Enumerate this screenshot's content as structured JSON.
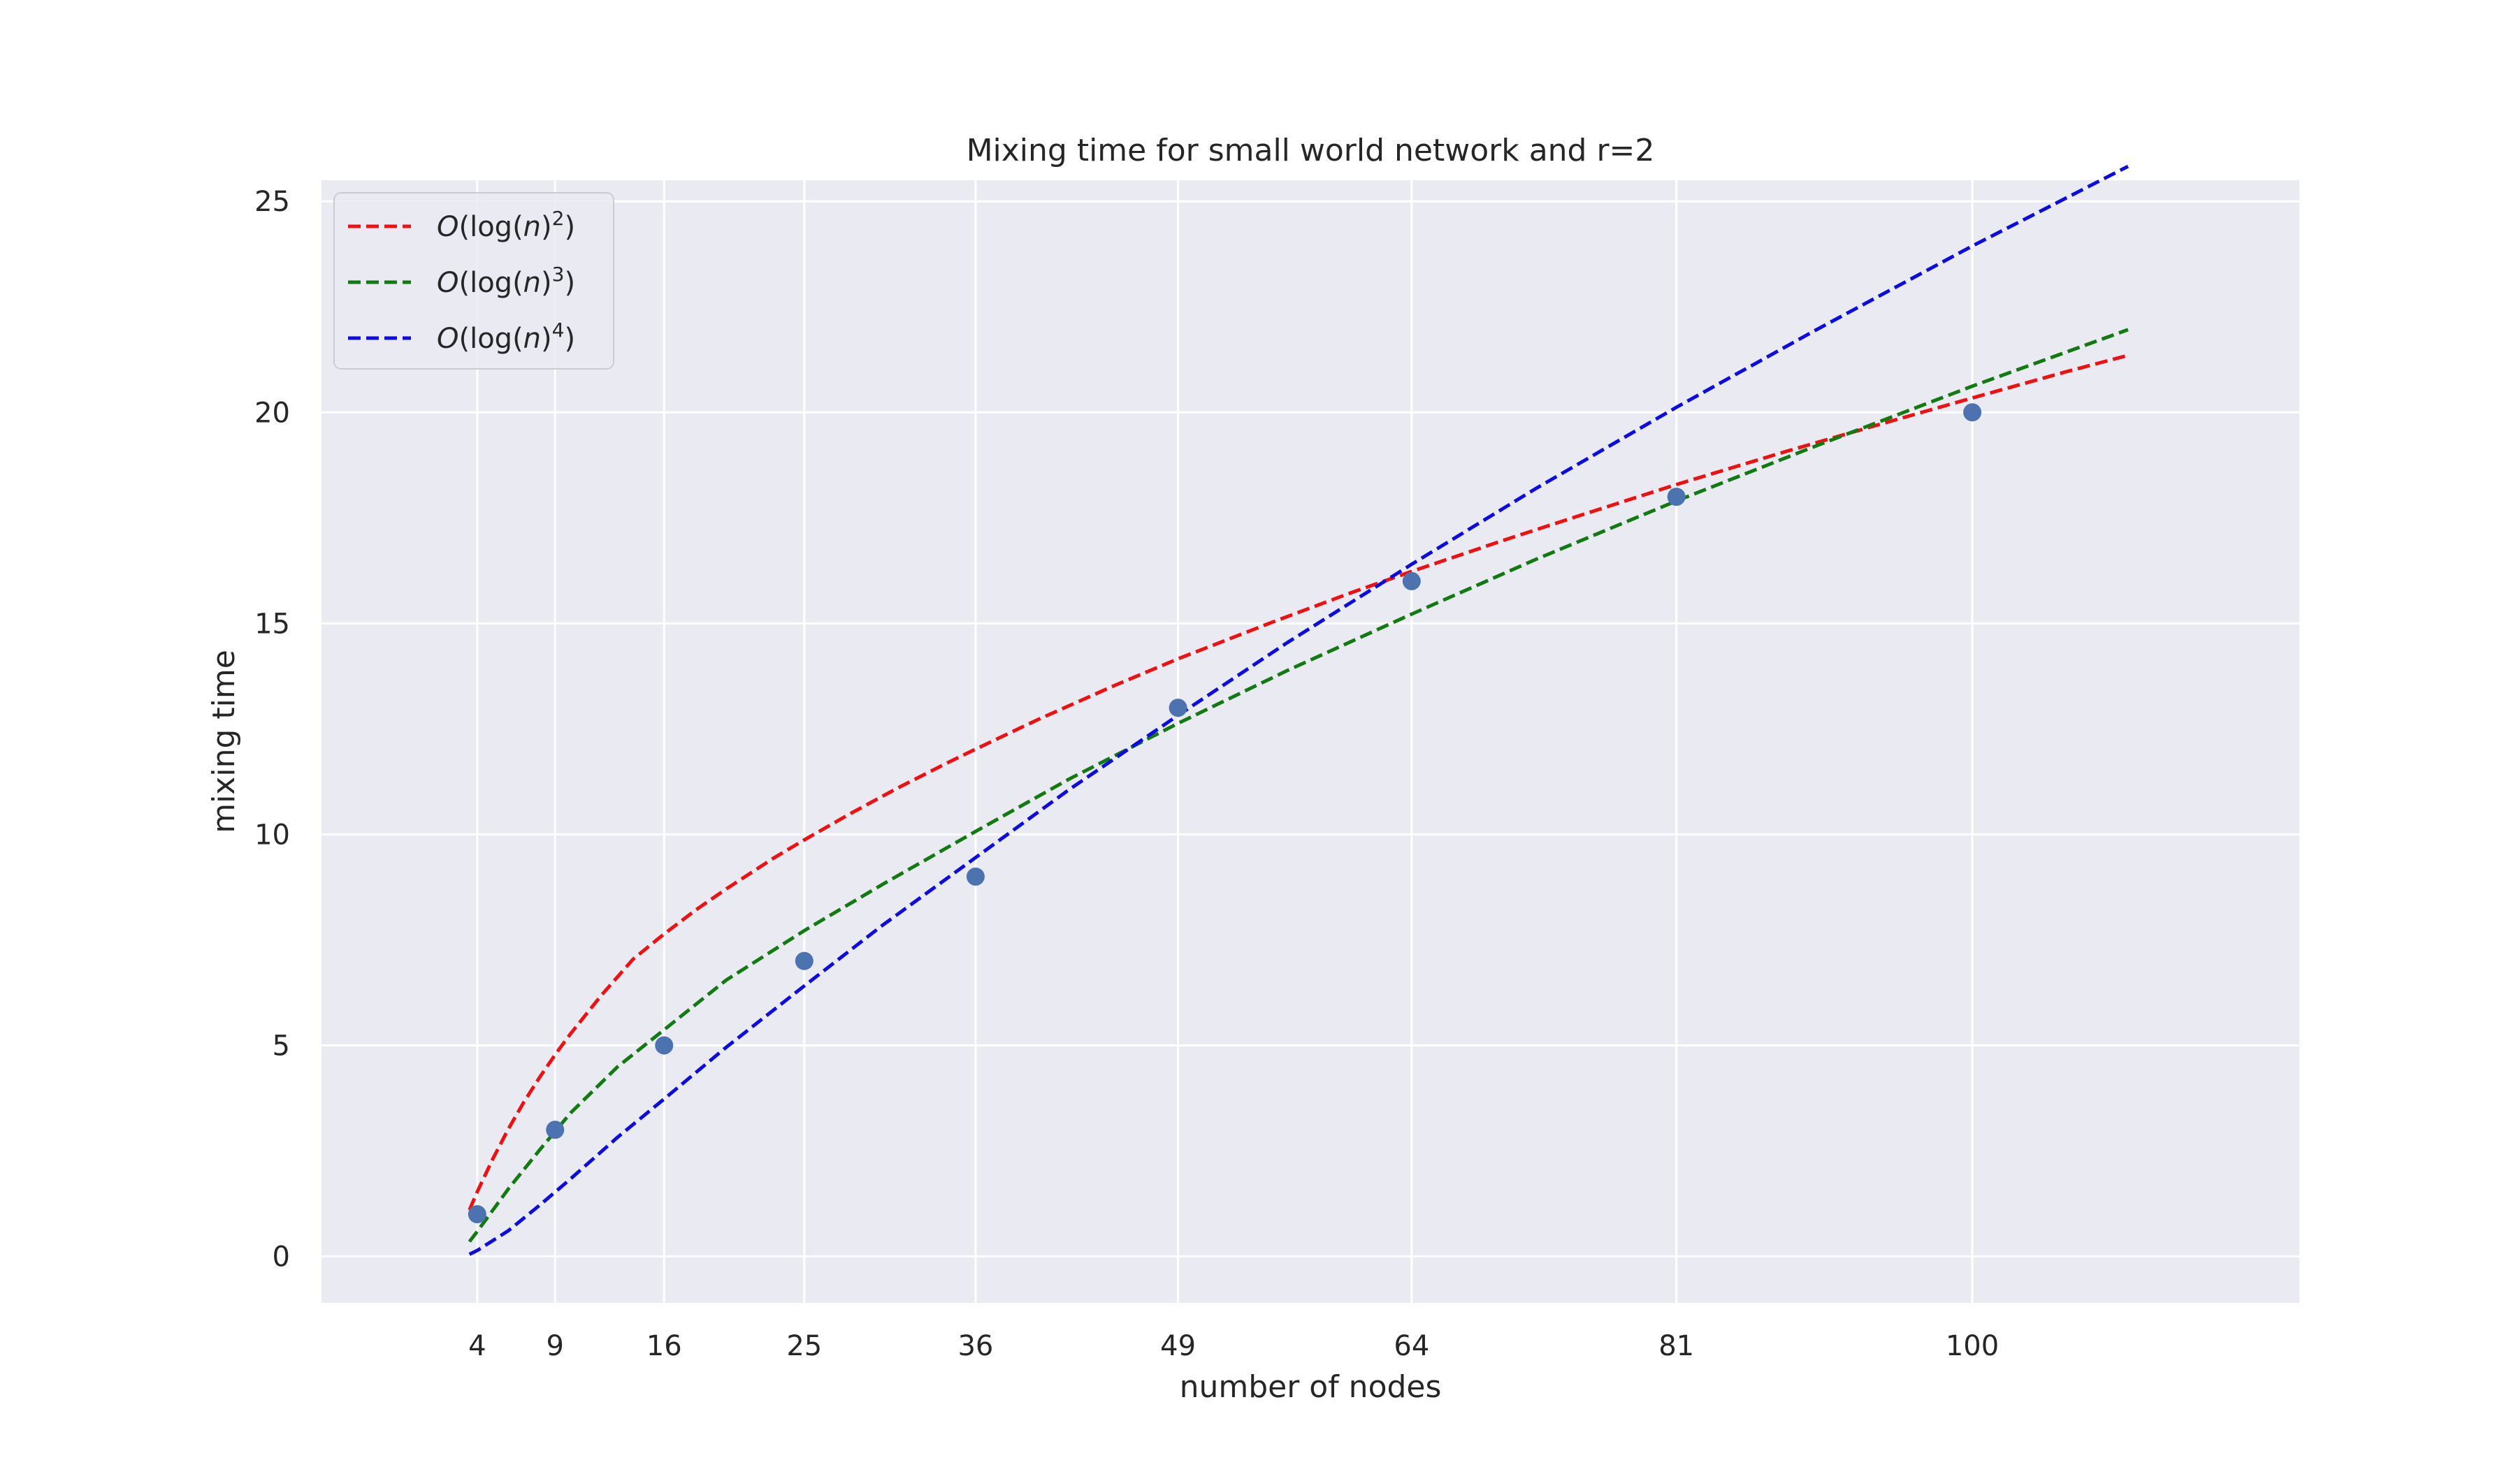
{
  "chart_data": {
    "type": "scatter",
    "title": "Mixing time for small world network and r=2",
    "xlabel": "number of nodes",
    "ylabel": "mixing time",
    "xlim": [
      -6,
      121
    ],
    "ylim": [
      -1.1,
      25.5
    ],
    "x_ticks": [
      4,
      9,
      16,
      25,
      36,
      49,
      64,
      81,
      100
    ],
    "y_ticks": [
      0,
      5,
      10,
      15,
      20,
      25
    ],
    "grid": true,
    "legend_position": "top-left",
    "points": {
      "x": [
        4,
        9,
        16,
        25,
        36,
        49,
        64,
        81,
        100
      ],
      "y": [
        1,
        3,
        5,
        7,
        9,
        13,
        16,
        18,
        20
      ],
      "color": "#4c72b0"
    },
    "series": [
      {
        "name": "O(log(n)^2)",
        "legend": {
          "prefix": "O(log(",
          "var": "n",
          "suffix": ")",
          "exp": "2",
          "close": ")"
        },
        "style": "dashed",
        "color": "#ee1111",
        "x": [
          3.5,
          4,
          5,
          6,
          7,
          8,
          9,
          10,
          12,
          14,
          16,
          18,
          20,
          23,
          25,
          28,
          31,
          34,
          36,
          40,
          45,
          49,
          55,
          60,
          64,
          70,
          75,
          81,
          88,
          94,
          100,
          106,
          110
        ],
        "y": [
          1.1,
          1.53,
          2.31,
          3.02,
          3.66,
          4.24,
          4.78,
          5.28,
          6.2,
          7.04,
          7.64,
          8.2,
          8.71,
          9.43,
          9.87,
          10.5,
          11.1,
          11.66,
          12.02,
          12.72,
          13.54,
          14.16,
          15.02,
          15.71,
          16.23,
          16.98,
          17.58,
          18.29,
          19.07,
          19.71,
          20.34,
          20.96,
          21.35
        ]
      },
      {
        "name": "O(log(n)^3)",
        "legend": {
          "prefix": "O(log(",
          "var": "n",
          "suffix": ")",
          "exp": "3",
          "close": ")"
        },
        "style": "dashed",
        "color": "#117a11",
        "x": [
          3.5,
          4,
          6,
          8,
          10,
          13,
          16,
          20,
          25,
          30,
          36,
          42,
          49,
          56,
          64,
          72,
          81,
          90,
          100,
          110
        ],
        "y": [
          0.35,
          0.59,
          1.6,
          2.52,
          3.4,
          4.49,
          5.37,
          6.55,
          7.72,
          8.81,
          10.07,
          11.31,
          12.63,
          13.88,
          15.22,
          16.52,
          17.9,
          19.21,
          20.62,
          21.96
        ]
      },
      {
        "name": "O(log(n)^4)",
        "legend": {
          "prefix": "O(log(",
          "var": "n",
          "suffix": ")",
          "exp": "4",
          "close": ")"
        },
        "style": "dashed",
        "color": "#0c0ce0",
        "x": [
          3.5,
          4,
          6,
          8,
          10,
          13,
          16,
          20,
          25,
          30,
          36,
          42,
          49,
          56,
          64,
          72,
          81,
          90,
          100,
          110
        ],
        "y": [
          0.05,
          0.14,
          0.61,
          1.21,
          1.84,
          2.82,
          3.73,
          4.96,
          6.41,
          7.84,
          9.45,
          11.06,
          12.82,
          14.54,
          16.4,
          18.2,
          20.12,
          21.96,
          23.94,
          25.83
        ]
      }
    ]
  }
}
